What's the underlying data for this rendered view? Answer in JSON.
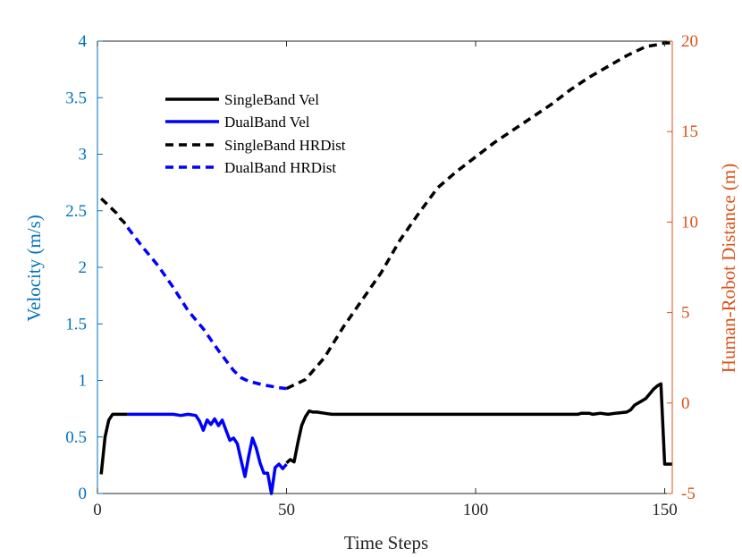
{
  "chart_data": {
    "type": "line",
    "title": "",
    "xlabel": "Time Steps",
    "ylabel_left": "Velocity (m/s)",
    "ylabel_right": "Human-Robot Distance (m)",
    "xlim": [
      0,
      152
    ],
    "ylim_left": [
      0,
      4
    ],
    "ylim_right": [
      -5,
      20
    ],
    "x_ticks": [
      "0",
      "50",
      "100",
      "150"
    ],
    "x_tick_values": [
      0,
      50,
      100,
      150
    ],
    "y_left_ticks": [
      "0",
      "0.5",
      "1",
      "1.5",
      "2",
      "2.5",
      "3",
      "3.5",
      "4"
    ],
    "y_left_tick_values": [
      0,
      0.5,
      1,
      1.5,
      2,
      2.5,
      3,
      3.5,
      4
    ],
    "y_right_ticks": [
      "-5",
      "0",
      "5",
      "10",
      "15",
      "20"
    ],
    "y_right_tick_values": [
      -5,
      0,
      5,
      10,
      15,
      20
    ],
    "grid": false,
    "legend_position": "top-left",
    "colors": {
      "left_axis": "#0072BD",
      "right_axis": "#D95319",
      "singleband": "#000000",
      "dualband": "#0000FF"
    },
    "series": [
      {
        "name": "SingleBand Vel",
        "axis": "left",
        "style": "solid",
        "color": "#000000",
        "x": [
          1,
          2,
          3,
          4,
          5,
          6,
          7,
          8
        ],
        "y": [
          0.17,
          0.5,
          0.65,
          0.7,
          0.7,
          0.7,
          0.7,
          0.7
        ],
        "x2": [
          50,
          51,
          52,
          53,
          54,
          55,
          56,
          57,
          58,
          60,
          62,
          65,
          70,
          80,
          90,
          100,
          110,
          120,
          127,
          128,
          130,
          131,
          133,
          135,
          137,
          140,
          141,
          142,
          143,
          144,
          145,
          146,
          147,
          148,
          149,
          150,
          151,
          152
        ],
        "y2": [
          0.27,
          0.3,
          0.28,
          0.45,
          0.6,
          0.68,
          0.73,
          0.72,
          0.72,
          0.71,
          0.7,
          0.7,
          0.7,
          0.7,
          0.7,
          0.7,
          0.7,
          0.7,
          0.7,
          0.71,
          0.71,
          0.7,
          0.71,
          0.7,
          0.71,
          0.72,
          0.74,
          0.78,
          0.8,
          0.82,
          0.84,
          0.88,
          0.92,
          0.95,
          0.97,
          0.26,
          0.26,
          0.26
        ]
      },
      {
        "name": "DualBand Vel",
        "axis": "left",
        "style": "solid",
        "color": "#0000FF",
        "x": [
          8,
          10,
          15,
          20,
          22,
          24,
          26,
          27,
          28,
          29,
          30,
          31,
          32,
          33,
          34,
          35,
          36,
          37,
          38,
          39,
          40,
          41,
          42,
          43,
          44,
          45,
          46,
          47,
          48,
          49,
          50
        ],
        "y": [
          0.7,
          0.7,
          0.7,
          0.7,
          0.69,
          0.7,
          0.69,
          0.64,
          0.56,
          0.65,
          0.61,
          0.66,
          0.6,
          0.65,
          0.56,
          0.47,
          0.49,
          0.44,
          0.29,
          0.15,
          0.33,
          0.49,
          0.4,
          0.27,
          0.18,
          0.18,
          0.0,
          0.23,
          0.26,
          0.22,
          0.26
        ]
      },
      {
        "name": "SingleBand HRDist",
        "axis": "right",
        "style": "dashed",
        "color": "#000000",
        "x": [
          1,
          2,
          3,
          4,
          5,
          6,
          7,
          8
        ],
        "y": [
          11.3,
          11.1,
          10.9,
          10.7,
          10.5,
          10.2,
          10.0,
          9.7
        ],
        "x2": [
          50,
          55,
          60,
          65,
          70,
          75,
          80,
          85,
          90,
          95,
          100,
          105,
          110,
          115,
          120,
          125,
          130,
          135,
          140,
          145,
          148,
          150,
          152
        ],
        "y2": [
          0.8,
          1.3,
          2.5,
          4.2,
          5.7,
          7.2,
          9.0,
          10.5,
          11.9,
          12.8,
          13.6,
          14.4,
          15.1,
          15.8,
          16.5,
          17.3,
          18.0,
          18.6,
          19.2,
          19.7,
          19.8,
          19.9,
          19.9
        ]
      },
      {
        "name": "DualBand HRDist",
        "axis": "right",
        "style": "dashed",
        "color": "#0000FF",
        "x": [
          8,
          12,
          16,
          20,
          24,
          28,
          32,
          36,
          38,
          40,
          44,
          48,
          50
        ],
        "y": [
          9.7,
          8.6,
          7.6,
          6.4,
          5.1,
          4.1,
          2.9,
          1.8,
          1.4,
          1.2,
          1.0,
          0.85,
          0.8
        ]
      }
    ]
  }
}
